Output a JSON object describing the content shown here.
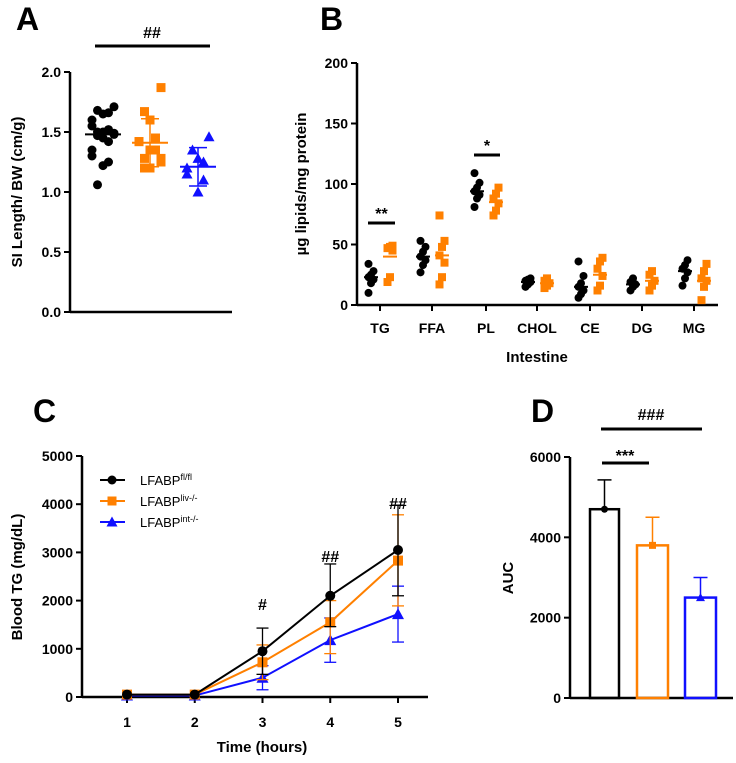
{
  "colors": {
    "fl": "#000000",
    "liv": "#ff8000",
    "int": "#1010ff"
  },
  "chart_data": [
    {
      "panel": "A",
      "type": "scatter",
      "ylabel": "SI Length/ BW (cm/g)",
      "ylim": [
        0,
        2.0
      ],
      "yticks": [
        "0.0",
        "0.5",
        "1.0",
        "1.5",
        "2.0"
      ],
      "annotation": "##",
      "groups": [
        {
          "name": "LFABPfl/fl",
          "marker": "circle",
          "mean": 1.48,
          "sd_hi": 1.48,
          "sd_lo": 1.48,
          "points": [
            1.71,
            1.68,
            1.65,
            1.66,
            1.6,
            1.55,
            1.52,
            1.5,
            1.5,
            1.49,
            1.48,
            1.47,
            1.45,
            1.42,
            1.35,
            1.3,
            1.25,
            1.22,
            1.06
          ]
        },
        {
          "name": "LFABPliv-/-",
          "marker": "square",
          "mean": 1.41,
          "sd_hi": 1.61,
          "sd_lo": 1.21,
          "points": [
            1.87,
            1.67,
            1.6,
            1.45,
            1.42,
            1.42,
            1.35,
            1.35,
            1.28,
            1.28,
            1.25,
            1.2,
            1.2
          ]
        },
        {
          "name": "LFABPint-/-",
          "marker": "triangle",
          "mean": 1.21,
          "sd_hi": 1.37,
          "sd_lo": 1.05,
          "points": [
            1.46,
            1.35,
            1.28,
            1.25,
            1.2,
            1.15,
            1.1,
            1.0
          ]
        }
      ]
    },
    {
      "panel": "B",
      "type": "scatter",
      "ylabel": "µg lipids/mg protein",
      "xlabel": "Intestine",
      "ylim": [
        0,
        200
      ],
      "yticks": [
        "0",
        "50",
        "100",
        "150",
        "200"
      ],
      "categories": [
        "TG",
        "FFA",
        "PL",
        "CHOL",
        "CE",
        "DG",
        "MG"
      ],
      "annotations": [
        {
          "category": "TG",
          "text": "**"
        },
        {
          "category": "PL",
          "text": "*"
        }
      ],
      "series": [
        {
          "name": "LFABPfl/fl",
          "marker": "circle",
          "means": [
            23,
            40,
            94,
            19,
            15,
            17,
            28
          ],
          "points": [
            [
              10,
              18,
              21,
              23,
              25,
              28,
              34
            ],
            [
              27,
              33,
              37,
              40,
              44,
              48,
              53
            ],
            [
              81,
              88,
              91,
              94,
              97,
              101,
              109
            ],
            [
              15,
              17,
              19,
              20,
              21,
              22
            ],
            [
              6,
              9,
              12,
              15,
              18,
              24,
              36
            ],
            [
              12,
              15,
              17,
              19,
              22
            ],
            [
              16,
              22,
              27,
              30,
              33,
              37
            ]
          ]
        },
        {
          "name": "LFABPliv-/-",
          "marker": "square",
          "means": [
            40,
            41,
            85,
            18,
            25,
            20,
            20
          ],
          "points": [
            [
              19,
              23,
              45,
              47,
              48,
              49
            ],
            [
              17,
              23,
              35,
              41,
              48,
              53,
              74
            ],
            [
              74,
              78,
              84,
              88,
              92,
              97
            ],
            [
              14,
              16,
              18,
              20,
              22
            ],
            [
              12,
              16,
              24,
              30,
              36,
              39
            ],
            [
              12,
              16,
              20,
              25,
              28
            ],
            [
              4,
              15,
              20,
              22,
              28,
              34
            ]
          ]
        }
      ]
    },
    {
      "panel": "C",
      "type": "line",
      "ylabel": "Blood TG (mg/dL)",
      "xlabel": "Time (hours)",
      "x": [
        1,
        2,
        3,
        4,
        5
      ],
      "xticks": [
        "1",
        "2",
        "3",
        "4",
        "5"
      ],
      "ylim": [
        0,
        5000
      ],
      "yticks": [
        "0",
        "1000",
        "2000",
        "3000",
        "4000",
        "5000"
      ],
      "legend": [
        {
          "base": "LFABP",
          "sup": "fl/fl"
        },
        {
          "base": "LFABP",
          "sup": "liv-/-"
        },
        {
          "base": "LFABP",
          "sup": "int-/-"
        }
      ],
      "legend_position": "top-left",
      "annotations": [
        {
          "x": 3,
          "y": 1800,
          "text": "#"
        },
        {
          "x": 4,
          "y": 2800,
          "text": "##"
        },
        {
          "x": 5,
          "y": 3900,
          "text": "##"
        }
      ],
      "series": [
        {
          "name": "LFABPfl/fl",
          "marker": "circle",
          "values": [
            50,
            50,
            950,
            2100,
            3050
          ],
          "err_hi": [
            null,
            null,
            1430,
            2760,
            3980
          ],
          "err_lo": [
            null,
            null,
            470,
            1460,
            2100
          ]
        },
        {
          "name": "LFABPliv-/-",
          "marker": "square",
          "values": [
            50,
            50,
            720,
            1550,
            2830
          ],
          "err_hi": [
            null,
            null,
            1080,
            2000,
            3780
          ],
          "err_lo": [
            null,
            null,
            360,
            900,
            1890
          ]
        },
        {
          "name": "LFABPint-/-",
          "marker": "triangle",
          "values": [
            30,
            30,
            400,
            1180,
            1720
          ],
          "err_hi": [
            null,
            null,
            650,
            1640,
            2300
          ],
          "err_lo": [
            null,
            null,
            150,
            720,
            1140
          ]
        }
      ]
    },
    {
      "panel": "D",
      "type": "bar",
      "ylabel": "AUC",
      "ylim": [
        0,
        6000
      ],
      "yticks": [
        "0",
        "2000",
        "4000",
        "6000"
      ],
      "categories": [
        "LFABPfl/fl",
        "LFABPliv-/-",
        "LFABPint-/-"
      ],
      "values": [
        4700,
        3800,
        2500
      ],
      "err_hi": [
        5430,
        4500,
        3000
      ],
      "annotations": [
        {
          "text": "###",
          "span": "fl/fl vs int-/-"
        },
        {
          "text": "***",
          "span": "fl/fl vs liv-/-"
        }
      ]
    }
  ]
}
